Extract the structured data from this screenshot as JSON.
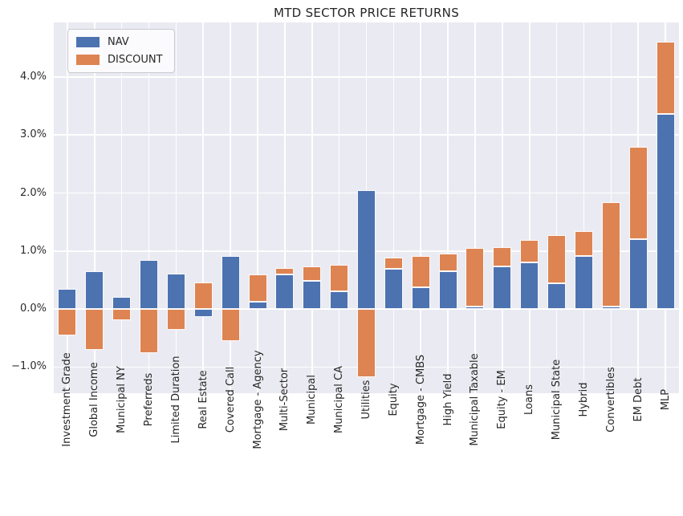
{
  "title": "MTD SECTOR PRICE RETURNS",
  "legend": [
    {
      "label": "NAV",
      "color": "#4c72b0"
    },
    {
      "label": "DISCOUNT",
      "color": "#dd8452"
    }
  ],
  "colors": {
    "nav": "#4c72b0",
    "discount": "#dd8452",
    "plot_background": "#eaeaf2",
    "grid": "#ffffff",
    "text": "#262626",
    "figure_background": "#ffffff"
  },
  "chart_data": {
    "type": "bar",
    "stacked": true,
    "title": "MTD SECTOR PRICE RETURNS",
    "xlabel": "",
    "ylabel": "",
    "unit": "%",
    "grid": true,
    "legend_position": "upper left",
    "ylim": [
      -1.45,
      4.94
    ],
    "categories": [
      "Investment Grade",
      "Global Income",
      "Municipal NY",
      "Preferreds",
      "Limited Duration",
      "Real Estate",
      "Covered Call",
      "Mortgage - Agency",
      "Multi-Sector",
      "Municipal",
      "Municipal CA",
      "Utilities",
      "Equity",
      "Mortgage - CMBS",
      "High Yield",
      "Municipal Taxable",
      "Equity - EM",
      "Loans",
      "Municipal State",
      "Hybrid",
      "Convertibles",
      "EM Debt",
      "MLP"
    ],
    "series": [
      {
        "name": "NAV",
        "color": "#4c72b0",
        "values": [
          0.35,
          0.65,
          0.21,
          0.84,
          0.61,
          -0.13,
          0.92,
          0.13,
          0.6,
          0.48,
          0.3,
          2.05,
          0.7,
          0.37,
          0.65,
          0.05,
          0.74,
          0.8,
          0.44,
          0.91,
          0.05,
          1.21,
          3.36
        ]
      },
      {
        "name": "DISCOUNT",
        "color": "#dd8452",
        "values": [
          -0.45,
          -0.7,
          -0.19,
          -0.76,
          -0.36,
          0.46,
          -0.55,
          0.47,
          0.11,
          0.26,
          0.46,
          -1.18,
          0.19,
          0.55,
          0.31,
          1.0,
          0.33,
          0.39,
          0.84,
          0.43,
          1.79,
          1.58,
          1.25
        ]
      }
    ],
    "y_ticks": [
      {
        "value": 4,
        "label": "4.0%"
      },
      {
        "value": 3,
        "label": "3.0%"
      },
      {
        "value": 2,
        "label": "2.0%"
      },
      {
        "value": 1,
        "label": "1.0%"
      },
      {
        "value": 0,
        "label": "0.0%"
      },
      {
        "value": -1,
        "label": "−1.0%"
      }
    ]
  }
}
